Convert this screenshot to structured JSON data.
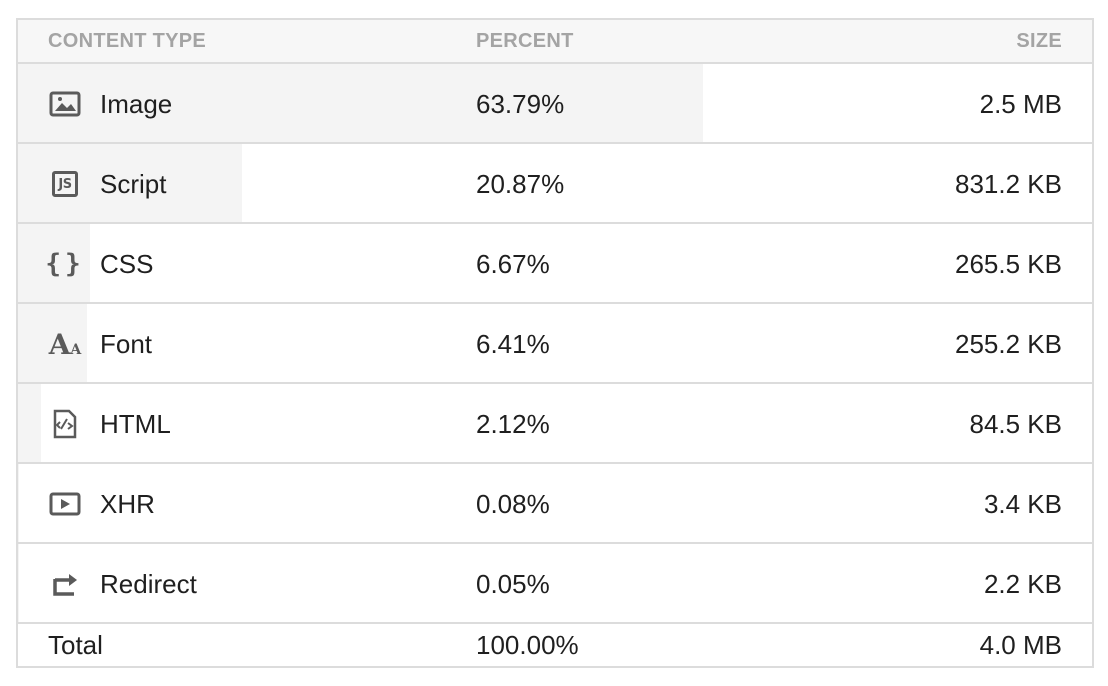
{
  "headers": {
    "type": "CONTENT TYPE",
    "percent": "PERCENT",
    "size": "SIZE"
  },
  "rows": [
    {
      "icon": "image-icon",
      "label": "Image",
      "percent": "63.79%",
      "share": 63.79,
      "size": "2.5 MB"
    },
    {
      "icon": "script-icon",
      "label": "Script",
      "percent": "20.87%",
      "share": 20.87,
      "size": "831.2 KB"
    },
    {
      "icon": "css-braces-icon",
      "label": "CSS",
      "percent": "6.67%",
      "share": 6.67,
      "size": "265.5 KB"
    },
    {
      "icon": "font-icon",
      "label": "Font",
      "percent": "6.41%",
      "share": 6.41,
      "size": "255.2 KB"
    },
    {
      "icon": "html-file-icon",
      "label": "HTML",
      "percent": "2.12%",
      "share": 2.12,
      "size": "84.5 KB"
    },
    {
      "icon": "xhr-play-icon",
      "label": "XHR",
      "percent": "0.08%",
      "share": 0.08,
      "size": "3.4 KB"
    },
    {
      "icon": "redirect-arrow-icon",
      "label": "Redirect",
      "percent": "0.05%",
      "share": 0.05,
      "size": "2.2 KB"
    }
  ],
  "total": {
    "label": "Total",
    "percent": "100.00%",
    "size": "4.0 MB"
  },
  "colors": {
    "bar": "#f4f4f4",
    "border": "#dcdcdc",
    "header_text": "#a4a4a4",
    "icon": "#5a5a5a"
  }
}
